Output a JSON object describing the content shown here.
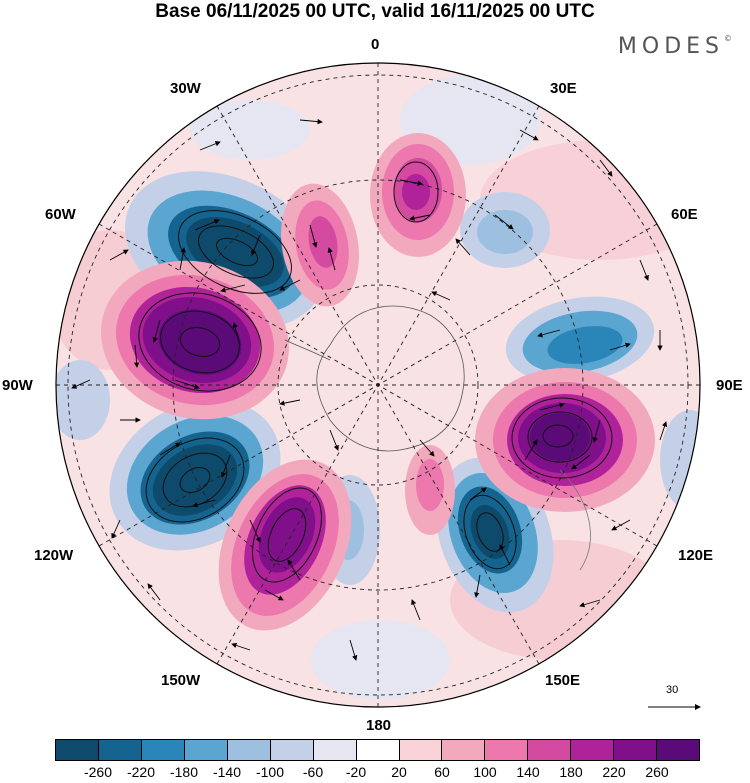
{
  "title": "Base 06/11/2025 00 UTC, valid 16/11/2025 00 UTC",
  "brand": "MODES",
  "brand_mark": "©",
  "longitude_labels": {
    "top": "0",
    "right_top": "30E",
    "right_upper": "60E",
    "right": "90E",
    "right_lower": "120E",
    "right_bottom": "150E",
    "bottom": "180",
    "left_bottom": "150W",
    "left_lower": "120W",
    "left": "90W",
    "left_upper": "60W",
    "left_top": "30W"
  },
  "reference_vector": {
    "label": "30"
  },
  "colorbar": {
    "colors": [
      "#0e4a6b",
      "#15648f",
      "#2a86b8",
      "#5aa6d1",
      "#9dbfe0",
      "#c4d0e8",
      "#e6e6f2",
      "#ffffff",
      "#f8d2d6",
      "#f3a9bd",
      "#ec78ad",
      "#d34aa0",
      "#b0229a",
      "#80108a",
      "#5a0b78"
    ],
    "tick_labels": [
      "-260",
      "-220",
      "-180",
      "-140",
      "-100",
      "-60",
      "-20",
      "20",
      "60",
      "100",
      "140",
      "180",
      "220",
      "260"
    ]
  },
  "colors": {
    "positive_strong": "#6a0a80",
    "negative_strong": "#0e4a6b",
    "background": "#ffffff"
  }
}
